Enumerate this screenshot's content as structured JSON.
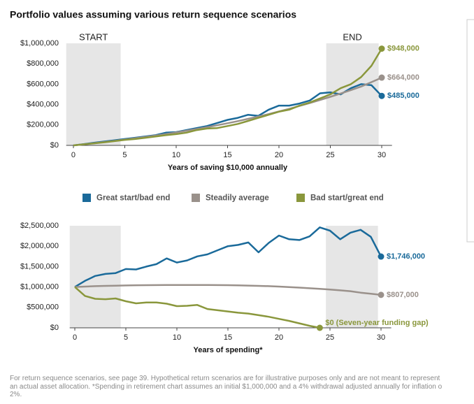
{
  "title": "Portfolio values assuming various return sequence scenarios",
  "chart_data": [
    {
      "type": "line",
      "x_label": "Years of saving $10,000 annually",
      "x": [
        0,
        1,
        2,
        3,
        4,
        5,
        6,
        7,
        8,
        9,
        10,
        11,
        12,
        13,
        14,
        15,
        16,
        17,
        18,
        19,
        20,
        21,
        22,
        23,
        24,
        25,
        26,
        27,
        28,
        29,
        30
      ],
      "xlim": [
        -0.7,
        31
      ],
      "xticks": [
        0,
        5,
        10,
        15,
        20,
        25,
        30
      ],
      "ylim": [
        0,
        1000000
      ],
      "yticks": [
        {
          "value": 0,
          "label": "$0"
        },
        {
          "value": 200000,
          "label": "$200,000"
        },
        {
          "value": 400000,
          "label": "$400,000"
        },
        {
          "value": 600000,
          "label": "$600,000"
        },
        {
          "value": 800000,
          "label": "$800,000"
        },
        {
          "value": 1000000,
          "label": "$1,000,000"
        }
      ],
      "shaded": [
        {
          "label": "START",
          "range": [
            -0.7,
            4.6
          ]
        },
        {
          "label": "END",
          "range": [
            24.6,
            29.7
          ]
        }
      ],
      "series": [
        {
          "name": "Great start/bad end",
          "color": "#1a6a9a",
          "values": [
            0,
            12000,
            25000,
            38000,
            50000,
            62000,
            75000,
            88000,
            100000,
            125000,
            130000,
            150000,
            170000,
            190000,
            220000,
            250000,
            270000,
            300000,
            290000,
            350000,
            390000,
            390000,
            410000,
            440000,
            510000,
            520000,
            500000,
            560000,
            600000,
            590000,
            485000
          ],
          "value_labels": [
            null,
            null,
            null,
            null,
            null,
            null,
            null,
            null,
            null,
            null,
            null,
            null,
            null,
            null,
            null,
            null,
            null,
            null,
            null,
            null,
            null,
            null,
            null,
            null,
            null,
            null,
            null,
            null,
            null,
            null,
            "$485,000"
          ]
        },
        {
          "name": "Steadily average",
          "color": "#9a918b",
          "values": [
            0,
            10000,
            21000,
            32000,
            44000,
            56000,
            69000,
            82000,
            96000,
            111000,
            127000,
            143000,
            160000,
            178000,
            197000,
            217000,
            238000,
            260000,
            283000,
            307000,
            332000,
            358000,
            386000,
            415000,
            445000,
            476000,
            508000,
            542000,
            577000,
            620000,
            664000
          ],
          "value_labels": [
            null,
            null,
            null,
            null,
            null,
            null,
            null,
            null,
            null,
            null,
            null,
            null,
            null,
            null,
            null,
            null,
            null,
            null,
            null,
            null,
            null,
            null,
            null,
            null,
            null,
            null,
            null,
            null,
            null,
            null,
            "$664,000"
          ]
        },
        {
          "name": "Bad start/great end",
          "color": "#8a973c",
          "values": [
            0,
            10000,
            20000,
            30000,
            42000,
            54000,
            62000,
            75000,
            88000,
            100000,
            110000,
            125000,
            150000,
            165000,
            170000,
            190000,
            210000,
            240000,
            270000,
            300000,
            330000,
            350000,
            390000,
            420000,
            460000,
            500000,
            560000,
            600000,
            670000,
            780000,
            948000
          ],
          "value_labels": [
            null,
            null,
            null,
            null,
            null,
            null,
            null,
            null,
            null,
            null,
            null,
            null,
            null,
            null,
            null,
            null,
            null,
            null,
            null,
            null,
            null,
            null,
            null,
            null,
            null,
            null,
            null,
            null,
            null,
            null,
            "$948,000"
          ]
        }
      ]
    },
    {
      "type": "line",
      "x_label": "Years of spending*",
      "x": [
        0,
        1,
        2,
        3,
        4,
        5,
        6,
        7,
        8,
        9,
        10,
        11,
        12,
        13,
        14,
        15,
        16,
        17,
        18,
        19,
        20,
        21,
        22,
        23,
        24,
        25,
        26,
        27,
        28,
        29,
        30
      ],
      "xlim": [
        -0.5,
        31
      ],
      "xticks": [
        0,
        5,
        10,
        15,
        20,
        25,
        30
      ],
      "ylim": [
        0,
        2500000
      ],
      "yticks": [
        {
          "value": 0,
          "label": "$0"
        },
        {
          "value": 500000,
          "label": "$500,000"
        },
        {
          "value": 1000000,
          "label": "$1,000,000"
        },
        {
          "value": 1500000,
          "label": "$1,500,000"
        },
        {
          "value": 2000000,
          "label": "$2,000,000"
        },
        {
          "value": 2500000,
          "label": "$2,500,000"
        }
      ],
      "shaded": [
        {
          "range": [
            -0.5,
            4.5
          ]
        },
        {
          "range": [
            24.6,
            29.7
          ]
        }
      ],
      "series": [
        {
          "color": "#1a6a9a",
          "values": [
            1000000,
            1150000,
            1270000,
            1320000,
            1340000,
            1440000,
            1430000,
            1500000,
            1560000,
            1700000,
            1600000,
            1650000,
            1750000,
            1800000,
            1900000,
            2000000,
            2030000,
            2090000,
            1850000,
            2080000,
            2260000,
            2170000,
            2150000,
            2240000,
            2460000,
            2380000,
            2170000,
            2330000,
            2400000,
            2230000,
            1746000
          ],
          "value_labels": [
            null,
            null,
            null,
            null,
            null,
            null,
            null,
            null,
            null,
            null,
            null,
            null,
            null,
            null,
            null,
            null,
            null,
            null,
            null,
            null,
            null,
            null,
            null,
            null,
            null,
            null,
            null,
            null,
            null,
            null,
            "$1,746,000"
          ]
        },
        {
          "color": "#9a918b",
          "values": [
            1000000,
            1010000,
            1020000,
            1027000,
            1033000,
            1038000,
            1042000,
            1045000,
            1047000,
            1049000,
            1050000,
            1050000,
            1050000,
            1049000,
            1047000,
            1044000,
            1040000,
            1035000,
            1028000,
            1020000,
            1010000,
            998000,
            985000,
            970000,
            954000,
            936000,
            917000,
            897000,
            862000,
            835000,
            807000
          ],
          "value_labels": [
            null,
            null,
            null,
            null,
            null,
            null,
            null,
            null,
            null,
            null,
            null,
            null,
            null,
            null,
            null,
            null,
            null,
            null,
            null,
            null,
            null,
            null,
            null,
            null,
            null,
            null,
            null,
            null,
            null,
            null,
            "$807,000"
          ]
        },
        {
          "color": "#8a973c",
          "values": [
            1000000,
            780000,
            710000,
            700000,
            720000,
            650000,
            600000,
            620000,
            620000,
            590000,
            530000,
            540000,
            560000,
            460000,
            430000,
            400000,
            370000,
            350000,
            310000,
            270000,
            220000,
            170000,
            110000,
            50000,
            0,
            null,
            null,
            null,
            null,
            null,
            null
          ],
          "value_labels": [
            null,
            null,
            null,
            null,
            null,
            null,
            null,
            null,
            null,
            null,
            null,
            null,
            null,
            null,
            null,
            null,
            null,
            null,
            null,
            null,
            null,
            null,
            null,
            null,
            "$0 (Seven-year funding gap)",
            null,
            null,
            null,
            null,
            null,
            null
          ]
        }
      ]
    }
  ],
  "footnote": [
    "For return sequence scenarios, see page 39. Hypothetical return scenarios are for illustrative purposes only and are not meant to represent",
    "an actual asset allocation. *Spending in retirement chart assumes an initial $1,000,000 and a 4% withdrawal adjusted annually for inflation o",
    "2%."
  ]
}
